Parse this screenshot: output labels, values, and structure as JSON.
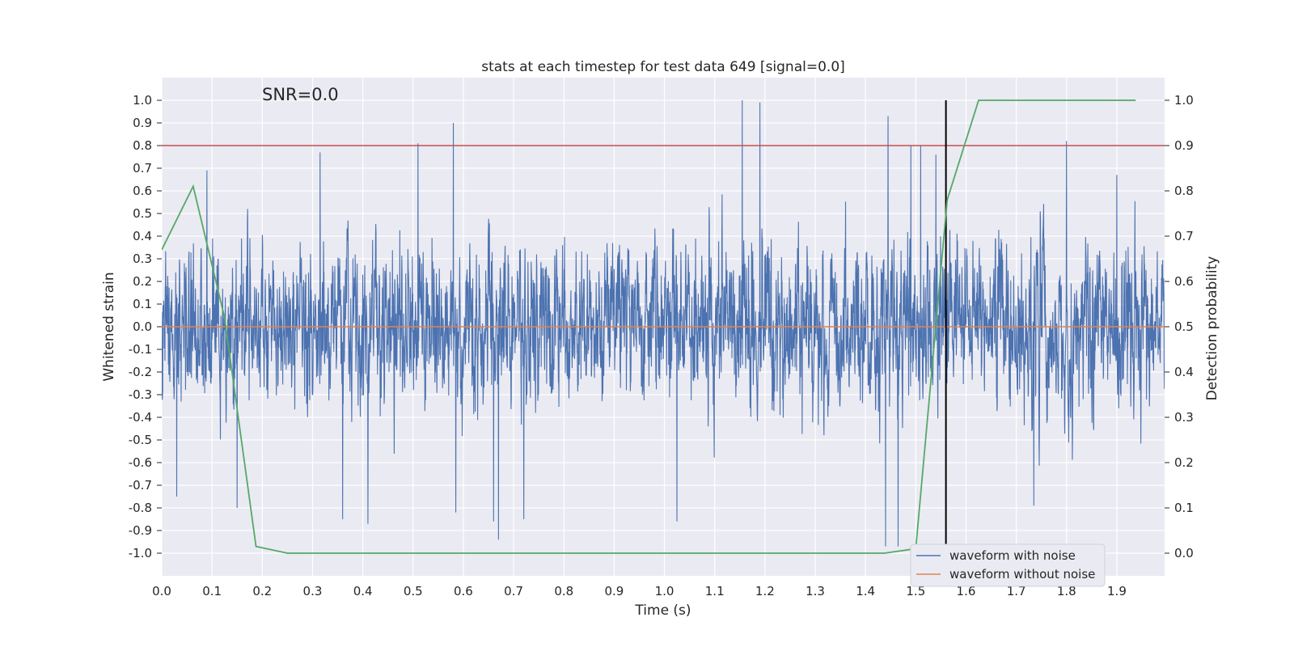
{
  "chart_data": {
    "type": "line",
    "title": "stats at each timestep for test data 649 [signal=0.0]",
    "xlabel": "Time (s)",
    "ylabel": "Whitened strain",
    "y2label": "Detection probability",
    "annotation": "SNR=0.0",
    "xlim": [
      0.0,
      1.995
    ],
    "ylim": [
      -1.1,
      1.1
    ],
    "y2lim": [
      -0.05,
      1.05
    ],
    "xticks": [
      0.0,
      0.1,
      0.2,
      0.3,
      0.4,
      0.5,
      0.6,
      0.7,
      0.8,
      0.9,
      1.0,
      1.1,
      1.2,
      1.3,
      1.4,
      1.5,
      1.6,
      1.7,
      1.8,
      1.9
    ],
    "yticks": [
      -1.0,
      -0.9,
      -0.8,
      -0.7,
      -0.6,
      -0.5,
      -0.4,
      -0.3,
      -0.2,
      -0.1,
      0.0,
      0.1,
      0.2,
      0.3,
      0.4,
      0.5,
      0.6,
      0.7,
      0.8,
      0.9,
      1.0
    ],
    "y2ticks": [
      0.0,
      0.1,
      0.2,
      0.3,
      0.4,
      0.5,
      0.6,
      0.7,
      0.8,
      0.9,
      1.0
    ],
    "colors": {
      "plot_bg": "#eaeaf2",
      "grid": "#ffffff",
      "noisy": "#4c72b0",
      "clean": "#dd8452",
      "probability": "#55a868",
      "threshold": "#c44e52",
      "marker": "#000000"
    },
    "series": [
      {
        "name": "waveform with noise",
        "axis": "left",
        "note": "noise-like strain trace, amplitude mostly within about -0.95..1.0",
        "sample_rate_hz": 2048,
        "seed": 649,
        "envelope": 0.28,
        "peaks": [
          {
            "t": 0.58,
            "v": 0.9
          },
          {
            "t": 1.155,
            "v": 1.0
          },
          {
            "t": 1.19,
            "v": 0.99
          },
          {
            "t": 1.445,
            "v": 0.93
          },
          {
            "t": 1.44,
            "v": -0.97
          },
          {
            "t": 0.67,
            "v": -0.94
          },
          {
            "t": 1.465,
            "v": -0.97
          },
          {
            "t": 0.51,
            "v": 0.81
          },
          {
            "t": 1.8,
            "v": 0.82
          },
          {
            "t": 0.315,
            "v": 0.77
          },
          {
            "t": 0.03,
            "v": -0.75
          },
          {
            "t": 1.025,
            "v": -0.86
          },
          {
            "t": 0.41,
            "v": -0.87
          },
          {
            "t": 0.36,
            "v": -0.85
          },
          {
            "t": 0.15,
            "v": -0.8
          },
          {
            "t": 1.49,
            "v": 0.8
          },
          {
            "t": 1.51,
            "v": 0.8
          },
          {
            "t": 1.54,
            "v": 0.76
          },
          {
            "t": 0.09,
            "v": 0.69
          },
          {
            "t": 0.66,
            "v": -0.86
          },
          {
            "t": 0.72,
            "v": -0.85
          },
          {
            "t": 1.735,
            "v": -0.79
          },
          {
            "t": 0.585,
            "v": -0.82
          },
          {
            "t": 1.9,
            "v": 0.67
          }
        ]
      },
      {
        "name": "waveform without noise",
        "axis": "left",
        "x": [
          0.0,
          1.995
        ],
        "values": [
          0.0,
          0.0
        ]
      },
      {
        "name": "detection probability",
        "axis": "right",
        "x": [
          0.0,
          0.0625,
          0.125,
          0.1875,
          0.25,
          0.3125,
          1.4375,
          1.5,
          1.5625,
          1.625,
          1.9375
        ],
        "values": [
          0.67,
          0.81,
          0.52,
          0.015,
          0.0,
          0.0,
          0.0,
          0.01,
          0.78,
          1.0,
          1.0
        ]
      }
    ],
    "threshold": {
      "axis": "right",
      "value": 0.9
    },
    "vertical_marker": {
      "x": 1.56,
      "y_from": -0.05,
      "y_to": 1.0
    },
    "legend": {
      "position": "bottom-right",
      "entries": [
        "waveform with noise",
        "waveform without noise"
      ]
    }
  }
}
